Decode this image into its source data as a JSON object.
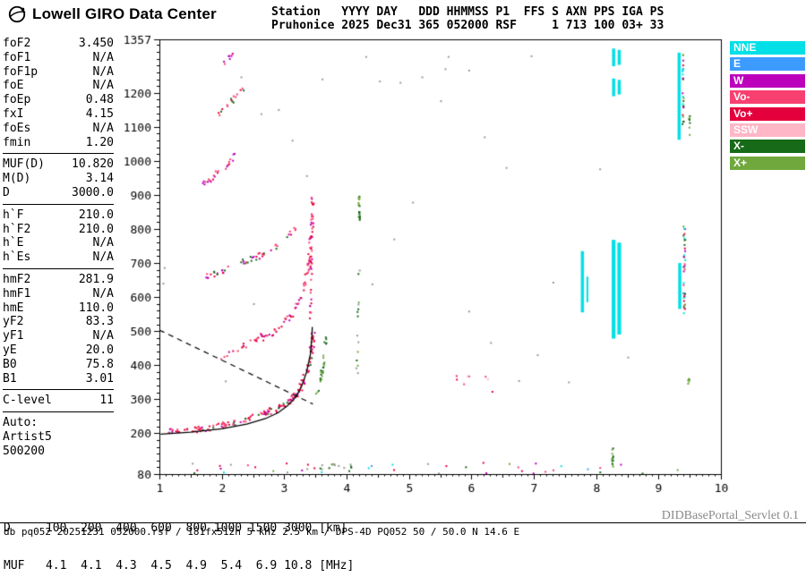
{
  "header": {
    "logo_text": "Lowell GIRO Data Center",
    "station_line1": "Station   YYYY DAY   DDD HHMMSS P1  FFS S AXN PPS IGA PS",
    "station_line2": "Pruhonice 2025 Dec31 365 052000 RSF     1 713 100 03+ 33"
  },
  "parameters": {
    "groups": [
      {
        "rows": [
          [
            "foF2",
            "3.450"
          ],
          [
            "foF1",
            "N/A"
          ],
          [
            "foF1p",
            "N/A"
          ],
          [
            "foE",
            "N/A"
          ],
          [
            "foEp",
            "0.48"
          ],
          [
            "fxI",
            "4.15"
          ],
          [
            "foEs",
            "N/A"
          ],
          [
            "fmin",
            "1.20"
          ]
        ]
      },
      {
        "rows": [
          [
            "MUF(D)",
            "10.820"
          ],
          [
            "M(D)",
            "3.14"
          ],
          [
            "D",
            "3000.0"
          ]
        ]
      },
      {
        "rows": [
          [
            "h`F",
            "210.0"
          ],
          [
            "h`F2",
            "210.0"
          ],
          [
            "h`E",
            "N/A"
          ],
          [
            "h`Es",
            "N/A"
          ]
        ]
      },
      {
        "rows": [
          [
            "hmF2",
            "281.9"
          ],
          [
            "hmF1",
            "N/A"
          ],
          [
            "hmE",
            "110.0"
          ],
          [
            "yF2",
            "83.3"
          ],
          [
            "yF1",
            "N/A"
          ],
          [
            "yE",
            "20.0"
          ],
          [
            "B0",
            "75.8"
          ],
          [
            "B1",
            "3.01"
          ]
        ]
      },
      {
        "rows": [
          [
            "C-level",
            "11"
          ]
        ]
      }
    ],
    "auto_block": [
      "Auto:",
      "Artist5",
      "500200"
    ]
  },
  "legend": {
    "items": [
      {
        "label": "NNE",
        "color": "#00E0E6"
      },
      {
        "label": "E",
        "color": "#3D9BFF"
      },
      {
        "label": "W",
        "color": "#BC00BC"
      },
      {
        "label": "Vo-",
        "color": "#F84070"
      },
      {
        "label": "Vo+",
        "color": "#E4003C"
      },
      {
        "label": "SSW",
        "color": "#FFB6C6"
      },
      {
        "label": "X-",
        "color": "#176A17"
      },
      {
        "label": "X+",
        "color": "#70A83E"
      }
    ]
  },
  "ionogram": {
    "axes": {
      "x_min": 1,
      "x_max": 10,
      "x_ticks": [
        1,
        2,
        3,
        4,
        5,
        6,
        7,
        8,
        9,
        10
      ],
      "y_min": 80,
      "y_max": 1357,
      "y_ticks": [
        1357,
        1200,
        1100,
        1000,
        900,
        800,
        700,
        600,
        500,
        400,
        300,
        200,
        80
      ]
    },
    "palette": {
      "R": "#E4003C",
      "P": "#F84070",
      "M": "#BC00BC",
      "C": "#00E0E6",
      "GD": "#176A17",
      "GL": "#70A83E",
      "SP": "#FFB6C6",
      "B": "#3D9BFF",
      "GY": "#999999"
    },
    "traces": [
      {
        "name": "F-trace-1st-hop",
        "count": 160,
        "jf": 0.035,
        "jh": 9,
        "size": 2,
        "colors": [
          "R",
          "R",
          "P",
          "R",
          "M",
          "P",
          "R",
          "GD"
        ],
        "path": [
          [
            1.1,
            206
          ],
          [
            1.4,
            210
          ],
          [
            1.7,
            216
          ],
          [
            2.0,
            226
          ],
          [
            2.3,
            240
          ],
          [
            2.6,
            256
          ],
          [
            2.85,
            274
          ],
          [
            3.05,
            295
          ],
          [
            3.2,
            320
          ],
          [
            3.3,
            352
          ],
          [
            3.38,
            395
          ],
          [
            3.43,
            445
          ],
          [
            3.45,
            500
          ]
        ]
      },
      {
        "name": "X-trace-cusp",
        "count": 26,
        "jf": 0.02,
        "jh": 12,
        "size": 2,
        "colors": [
          "GL",
          "GD"
        ],
        "path": [
          [
            3.5,
            300
          ],
          [
            3.55,
            340
          ],
          [
            3.6,
            385
          ],
          [
            3.63,
            430
          ],
          [
            3.66,
            485
          ]
        ]
      },
      {
        "name": "F-trace-2nd-hop",
        "count": 95,
        "jf": 0.03,
        "jh": 10,
        "size": 2,
        "colors": [
          "R",
          "P",
          "M",
          "R",
          "P"
        ],
        "path": [
          [
            1.95,
            428
          ],
          [
            2.2,
            448
          ],
          [
            2.5,
            472
          ],
          [
            2.8,
            502
          ],
          [
            3.0,
            530
          ],
          [
            3.15,
            562
          ],
          [
            3.27,
            607
          ],
          [
            3.35,
            662
          ],
          [
            3.4,
            732
          ],
          [
            3.43,
            825
          ],
          [
            3.445,
            900
          ]
        ]
      },
      {
        "name": "2nd-hop-spread",
        "count": 28,
        "jf": 0.015,
        "jh": 16,
        "size": 2,
        "colors": [
          "P",
          "R",
          "M"
        ],
        "path": [
          [
            3.41,
            520
          ],
          [
            3.43,
            895
          ]
        ]
      },
      {
        "name": "F-trace-3rd-hop",
        "count": 48,
        "jf": 0.03,
        "jh": 9,
        "size": 2,
        "colors": [
          "P",
          "R",
          "M",
          "GD"
        ],
        "path": [
          [
            1.7,
            660
          ],
          [
            2.0,
            682
          ],
          [
            2.3,
            702
          ],
          [
            2.6,
            724
          ],
          [
            2.85,
            748
          ],
          [
            3.05,
            778
          ],
          [
            3.18,
            808
          ]
        ]
      },
      {
        "name": "F-trace-4th-hop",
        "count": 24,
        "jf": 0.03,
        "jh": 9,
        "size": 2,
        "colors": [
          "P",
          "R",
          "M"
        ],
        "path": [
          [
            1.68,
            935
          ],
          [
            1.85,
            958
          ],
          [
            2.02,
            982
          ],
          [
            2.15,
            1005
          ],
          [
            2.26,
            1030
          ]
        ]
      },
      {
        "name": "F-trace-5th-hop",
        "count": 16,
        "jf": 0.03,
        "jh": 9,
        "size": 2,
        "colors": [
          "P",
          "R",
          "GD"
        ],
        "path": [
          [
            1.9,
            1130
          ],
          [
            2.05,
            1158
          ],
          [
            2.2,
            1188
          ],
          [
            2.33,
            1218
          ]
        ]
      },
      {
        "name": "F-trace-6th-hop",
        "count": 8,
        "jf": 0.02,
        "jh": 8,
        "size": 2,
        "colors": [
          "P",
          "M"
        ],
        "path": [
          [
            2.02,
            1286
          ],
          [
            2.1,
            1302
          ],
          [
            2.18,
            1320
          ]
        ]
      },
      {
        "name": "green-vertical-4.2-upper",
        "count": 22,
        "jf": 0.012,
        "jh": 6,
        "size": 2,
        "colors": [
          "GD",
          "GL"
        ],
        "path": [
          [
            4.19,
            812
          ],
          [
            4.19,
            900
          ]
        ]
      },
      {
        "name": "green-vertical-4.2-lower",
        "count": 14,
        "jf": 0.015,
        "jh": 22,
        "size": 2,
        "colors": [
          "GD",
          "GL",
          "GY"
        ],
        "path": [
          [
            4.15,
            360
          ],
          [
            4.19,
            700
          ]
        ]
      },
      {
        "name": "pink-mid-sparse",
        "count": 9,
        "jf": 0.05,
        "jh": 26,
        "size": 2,
        "colors": [
          "P",
          "R",
          "SP"
        ],
        "path": [
          [
            5.55,
            352
          ],
          [
            6.6,
            348
          ]
        ]
      },
      {
        "name": "green-col-8.25-bottom",
        "count": 12,
        "jf": 0.012,
        "jh": 10,
        "size": 2,
        "colors": [
          "GL",
          "GD"
        ],
        "path": [
          [
            8.25,
            90
          ],
          [
            8.25,
            172
          ]
        ]
      },
      {
        "name": "mixed-col-9.38-top",
        "count": 26,
        "jf": 0.012,
        "jh": 10,
        "size": 2,
        "colors": [
          "GD",
          "R",
          "M",
          "GL",
          "C"
        ],
        "path": [
          [
            9.38,
            1100
          ],
          [
            9.38,
            1318
          ]
        ]
      },
      {
        "name": "mixed-col-9.40-mid",
        "count": 36,
        "jf": 0.015,
        "jh": 10,
        "size": 2,
        "colors": [
          "C",
          "M",
          "R",
          "GD",
          "GL",
          "P"
        ],
        "path": [
          [
            9.4,
            560
          ],
          [
            9.4,
            818
          ]
        ]
      },
      {
        "name": "green-col-9.48",
        "count": 8,
        "jf": 0.01,
        "jh": 8,
        "size": 2,
        "colors": [
          "GL",
          "GD"
        ],
        "path": [
          [
            9.48,
            1070
          ],
          [
            9.48,
            1140
          ]
        ]
      },
      {
        "name": "green-dots-9.47-low",
        "count": 5,
        "jf": 0.012,
        "jh": 10,
        "size": 2,
        "colors": [
          "GD",
          "GL"
        ],
        "path": [
          [
            9.47,
            330
          ],
          [
            9.47,
            362
          ]
        ]
      },
      {
        "name": "e-region-noise",
        "count": 42,
        "jf": 0.03,
        "jh": 16,
        "size": 2,
        "colors": [
          "GD",
          "GL",
          "P",
          "GY",
          "C",
          "M",
          "R",
          "B"
        ],
        "path": [
          [
            1.3,
            100
          ],
          [
            9.5,
            100
          ]
        ]
      },
      {
        "name": "e-region-clump",
        "count": 14,
        "jf": 0.03,
        "jh": 12,
        "size": 2,
        "colors": [
          "GD",
          "GL",
          "GY"
        ],
        "path": [
          [
            3.55,
            103
          ],
          [
            4.1,
            98
          ]
        ]
      }
    ],
    "bars": [
      {
        "name": "cyan-bar-7.78",
        "f": 7.78,
        "w": 0.05,
        "h1": 555,
        "h2": 735,
        "color": "C"
      },
      {
        "name": "cyan-bar-7.86",
        "f": 7.86,
        "w": 0.03,
        "h1": 585,
        "h2": 660,
        "color": "C"
      },
      {
        "name": "cyan-bar-8.28",
        "f": 8.28,
        "w": 0.06,
        "h1": 478,
        "h2": 768,
        "color": "C"
      },
      {
        "name": "cyan-bar-8.37",
        "f": 8.37,
        "w": 0.06,
        "h1": 490,
        "h2": 760,
        "color": "C"
      },
      {
        "name": "cyan-bar-8.28-top1",
        "f": 8.28,
        "w": 0.05,
        "h1": 1190,
        "h2": 1242,
        "color": "C"
      },
      {
        "name": "cyan-bar-8.37-top1",
        "f": 8.37,
        "w": 0.05,
        "h1": 1195,
        "h2": 1238,
        "color": "C"
      },
      {
        "name": "cyan-bar-8.28-top2",
        "f": 8.28,
        "w": 0.05,
        "h1": 1278,
        "h2": 1330,
        "color": "C"
      },
      {
        "name": "cyan-bar-8.37-top2",
        "f": 8.37,
        "w": 0.05,
        "h1": 1282,
        "h2": 1326,
        "color": "C"
      },
      {
        "name": "cyan-bar-9.33",
        "f": 9.33,
        "w": 0.05,
        "h1": 1062,
        "h2": 1318,
        "color": "C"
      },
      {
        "name": "cyan-bar-9.34-mid",
        "f": 9.34,
        "w": 0.05,
        "h1": 565,
        "h2": 700,
        "color": "C"
      }
    ],
    "noise_points": [
      [
        2.3,
        1248
      ],
      [
        2.62,
        1140
      ],
      [
        2.9,
        1152
      ],
      [
        3.12,
        1062
      ],
      [
        3.35,
        958
      ],
      [
        3.6,
        1242
      ],
      [
        4.3,
        1308
      ],
      [
        4.52,
        1236
      ],
      [
        4.85,
        1232
      ],
      [
        5.2,
        1248
      ],
      [
        5.5,
        1178
      ],
      [
        5.62,
        1308
      ],
      [
        6.2,
        1072
      ],
      [
        6.55,
        982
      ],
      [
        6.95,
        1310
      ],
      [
        7.3,
        645
      ],
      [
        7.05,
        432
      ],
      [
        7.55,
        352
      ],
      [
        8.5,
        425
      ],
      [
        8.05,
        978
      ],
      [
        5.05,
        880
      ],
      [
        4.75,
        772
      ],
      [
        6.75,
        356
      ],
      [
        2.5,
        582
      ],
      [
        1.07,
        688
      ],
      [
        1.05,
        642
      ],
      [
        5.95,
        560
      ],
      [
        6.3,
        468
      ],
      [
        4.4,
        640
      ],
      [
        2.05,
        355
      ],
      [
        5.57,
        1272
      ],
      [
        5.95,
        1268
      ]
    ],
    "fit_trace": [
      [
        1.02,
        197
      ],
      [
        1.5,
        203
      ],
      [
        2.0,
        213
      ],
      [
        2.4,
        227
      ],
      [
        2.7,
        243
      ],
      [
        2.9,
        260
      ],
      [
        3.05,
        280
      ],
      [
        3.18,
        305
      ],
      [
        3.28,
        338
      ],
      [
        3.36,
        380
      ],
      [
        3.42,
        432
      ],
      [
        3.445,
        485
      ],
      [
        3.45,
        512
      ]
    ],
    "dashed_trace": [
      [
        1.0,
        503
      ],
      [
        3.46,
        286
      ]
    ]
  },
  "bottom": {
    "d_label": "D",
    "d_values": [
      "100",
      "200",
      "400",
      "600",
      "800",
      "1000",
      "1500",
      "3000"
    ],
    "d_unit": "[km]",
    "muf_label": "MUF",
    "muf_values": [
      "4.1",
      "4.1",
      "4.3",
      "4.5",
      "4.9",
      "5.4",
      "6.9",
      "10.8"
    ],
    "muf_unit": "[MHz]"
  },
  "footer": {
    "servlet_label": "DIDBasePortal_Servlet 0.1",
    "status_line": "db pq052 20251231 052000.rsf / 181fx512h 5 kHz 2.5 km / DPS-4D PQ052 50 / 50.0 N 14.6 E"
  }
}
